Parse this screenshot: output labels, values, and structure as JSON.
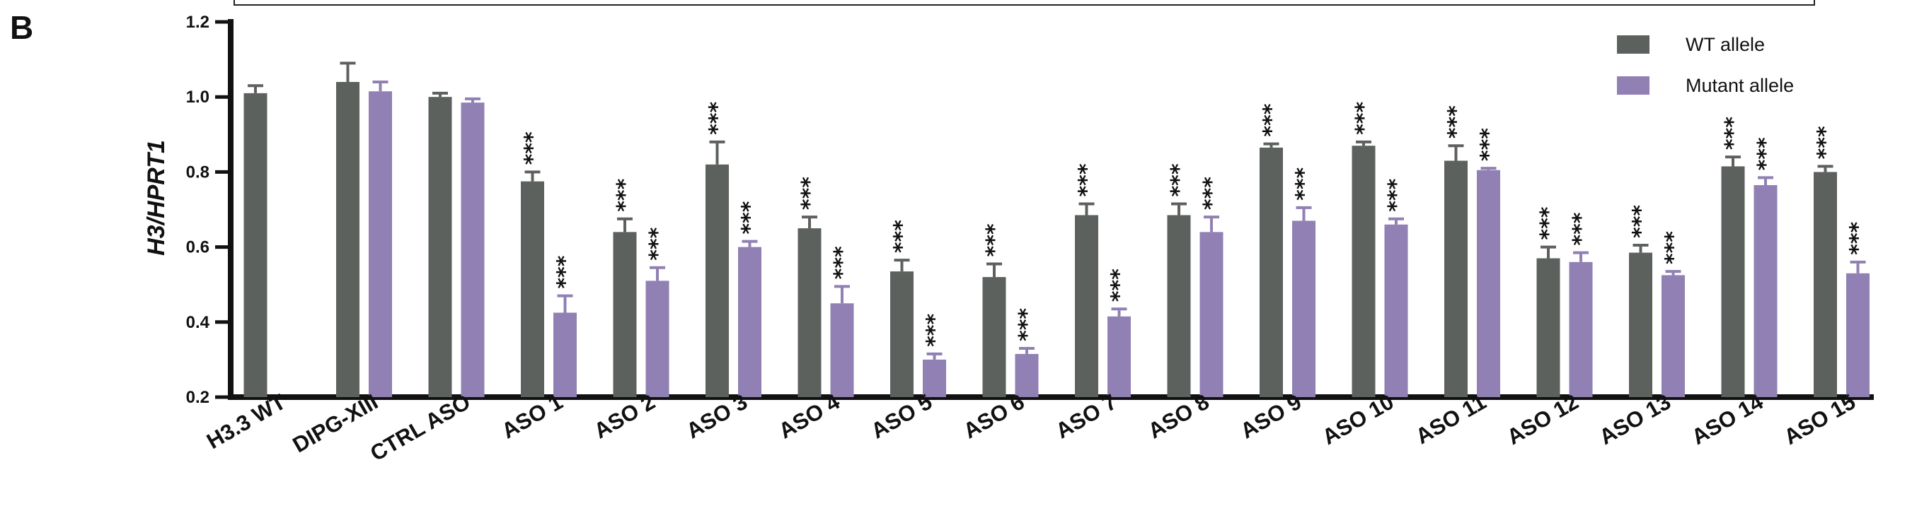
{
  "panel_label": "B",
  "chart_data": {
    "type": "bar",
    "ylabel": "H3/HPRT1",
    "xlabel": "",
    "ylim": [
      0.2,
      1.2
    ],
    "yticks": [
      "0.2",
      "0.4",
      "0.6",
      "0.8",
      "1.0",
      "1.2"
    ],
    "legend_position": "top-right",
    "significance_marker": "***",
    "categories": [
      "H3.3 WT",
      "DIPG-XIII",
      "CTRL ASO",
      "ASO 1",
      "ASO 2",
      "ASO 3",
      "ASO 4",
      "ASO 5",
      "ASO 6",
      "ASO 7",
      "ASO 8",
      "ASO 9",
      "ASO 10",
      "ASO 11",
      "ASO 12",
      "ASO 13",
      "ASO 14",
      "ASO 15"
    ],
    "series": [
      {
        "name": "WT allele",
        "color": "#5d615e",
        "values": [
          1.01,
          1.04,
          1.0,
          0.775,
          0.64,
          0.82,
          0.65,
          0.535,
          0.52,
          0.685,
          0.685,
          0.865,
          0.87,
          0.83,
          0.57,
          0.585,
          0.815,
          0.8
        ],
        "errors": [
          0.02,
          0.05,
          0.01,
          0.025,
          0.035,
          0.06,
          0.03,
          0.03,
          0.035,
          0.03,
          0.03,
          0.01,
          0.01,
          0.04,
          0.03,
          0.02,
          0.025,
          0.015
        ],
        "significant": [
          false,
          false,
          false,
          true,
          true,
          true,
          true,
          true,
          true,
          true,
          true,
          true,
          true,
          true,
          true,
          true,
          true,
          true
        ]
      },
      {
        "name": "Mutant allele",
        "color": "#9080b3",
        "values": [
          null,
          1.015,
          0.985,
          0.425,
          0.51,
          0.6,
          0.45,
          0.3,
          0.315,
          0.415,
          0.64,
          0.67,
          0.66,
          0.805,
          0.56,
          0.525,
          0.765,
          0.53
        ],
        "errors": [
          null,
          0.025,
          0.01,
          0.045,
          0.035,
          0.015,
          0.045,
          0.015,
          0.015,
          0.02,
          0.04,
          0.035,
          0.015,
          0.005,
          0.025,
          0.01,
          0.02,
          0.03
        ],
        "significant": [
          false,
          false,
          false,
          true,
          true,
          true,
          true,
          true,
          true,
          true,
          true,
          true,
          true,
          true,
          true,
          true,
          true,
          true
        ]
      }
    ]
  }
}
